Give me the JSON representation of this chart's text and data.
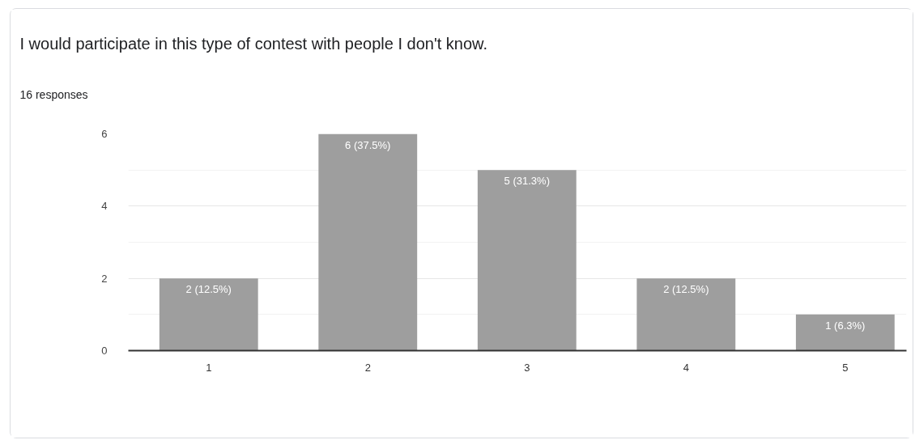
{
  "chart_data": {
    "type": "bar",
    "title": "I would participate in this type of contest with people I don't know.",
    "subtitle": "16 responses",
    "categories": [
      "1",
      "2",
      "3",
      "4",
      "5"
    ],
    "values": [
      2,
      6,
      5,
      2,
      1
    ],
    "color": "#9e9e9e",
    "value_labels": [
      "2 (12.5%)",
      "6 (37.5%)",
      "5 (31.3%)",
      "2 (12.5%)",
      "1 (6.3%)"
    ],
    "ylim": [
      0,
      6
    ],
    "yticks": [
      0,
      {
        "value": 1,
        "label": null
      },
      2,
      {
        "value": 3,
        "label": null
      },
      4,
      {
        "value": 5,
        "label": null
      },
      6
    ],
    "grid": "y"
  }
}
